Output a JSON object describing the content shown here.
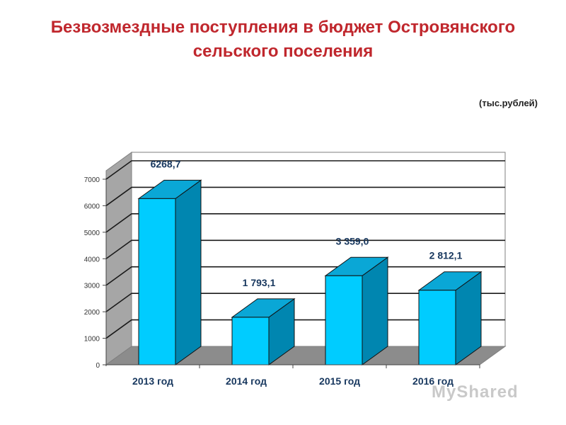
{
  "title": "Безвозмездные поступления в бюджет Островянского сельского поселения",
  "unit": "(тыс.рублей)",
  "watermark": "MyShared",
  "chart_data": {
    "type": "bar",
    "categories": [
      "2013 год",
      "2014 год",
      "2015 год",
      "2016 год"
    ],
    "values": [
      6268.7,
      1793.1,
      3359.0,
      2812.1
    ],
    "data_labels": [
      "6268,7",
      "1 793,1",
      "3 359,0",
      "2 812,1"
    ],
    "ylim": [
      0,
      7000
    ],
    "yticks": [
      0,
      1000,
      2000,
      3000,
      4000,
      5000,
      6000,
      7000
    ],
    "grid": true,
    "colors": {
      "bar_front": "#00ccff",
      "bar_side": "#0086b0",
      "bar_top": "#0aa7d6",
      "back_wall": "#ffffff",
      "side_wall": "#a6a6a6",
      "floor": "#8c8c8c",
      "label_color": "#17375e"
    }
  }
}
